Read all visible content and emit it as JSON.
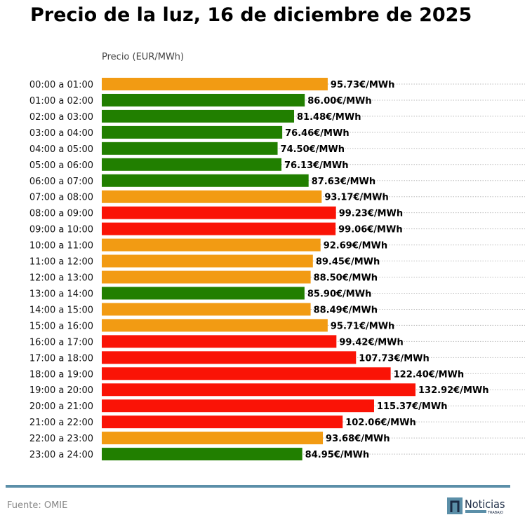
{
  "chart_data": {
    "type": "bar",
    "orientation": "horizontal",
    "title": "Precio de la luz, 16 de diciembre de 2025",
    "xlabel": "Precio (EUR/MWh)",
    "value_suffix": "€/MWh",
    "xlim": [
      0,
      135
    ],
    "grid": "dotted horizontal per row",
    "categories": [
      "00:00 a 01:00",
      "01:00 a 02:00",
      "02:00 a 03:00",
      "03:00 a 04:00",
      "04:00 a 05:00",
      "05:00 a 06:00",
      "06:00 a 07:00",
      "07:00 a 08:00",
      "08:00 a 09:00",
      "09:00 a 10:00",
      "10:00 a 11:00",
      "11:00 a 12:00",
      "12:00 a 13:00",
      "13:00 a 14:00",
      "14:00 a 15:00",
      "15:00 a 16:00",
      "16:00 a 17:00",
      "17:00 a 18:00",
      "18:00 a 19:00",
      "19:00 a 20:00",
      "20:00 a 21:00",
      "21:00 a 22:00",
      "22:00 a 23:00",
      "23:00 a 24:00"
    ],
    "values": [
      95.73,
      86.0,
      81.48,
      76.46,
      74.5,
      76.13,
      87.63,
      93.17,
      99.23,
      99.06,
      92.69,
      89.45,
      88.5,
      85.9,
      88.49,
      95.71,
      99.42,
      107.73,
      122.4,
      132.92,
      115.37,
      102.06,
      93.68,
      84.95
    ],
    "levels": [
      "mid",
      "low",
      "low",
      "low",
      "low",
      "low",
      "low",
      "mid",
      "high",
      "high",
      "mid",
      "mid",
      "mid",
      "low",
      "mid",
      "mid",
      "high",
      "high",
      "high",
      "high",
      "high",
      "high",
      "mid",
      "low"
    ],
    "colors": {
      "low": "#217f00",
      "mid": "#f29b13",
      "high": "#fa1306"
    }
  },
  "footer": {
    "source": "Fuente: OMIE",
    "logo_text": "Noticias",
    "logo_subtext": "TRABAJO"
  }
}
